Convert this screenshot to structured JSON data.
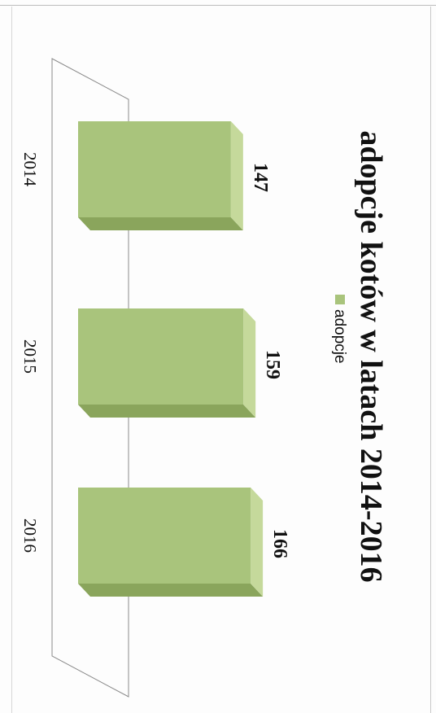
{
  "chart_data": {
    "type": "bar",
    "title": "adopcje kotów w latach 2014-2016",
    "categories": [
      "2014",
      "2015",
      "2016"
    ],
    "series": [
      {
        "name": "adopcje",
        "values": [
          147,
          159,
          166
        ]
      }
    ],
    "data_labels": [
      "147",
      "159",
      "166"
    ],
    "ylim": [
      0,
      180
    ],
    "grid": false,
    "legend_position": "top",
    "orientation": "rotated-90-clockwise",
    "colors": {
      "bar_front": "#a9c47c",
      "bar_top": "#c5d99b",
      "bar_side": "#8aa55c",
      "floor_line": "#8a8a8a"
    }
  }
}
